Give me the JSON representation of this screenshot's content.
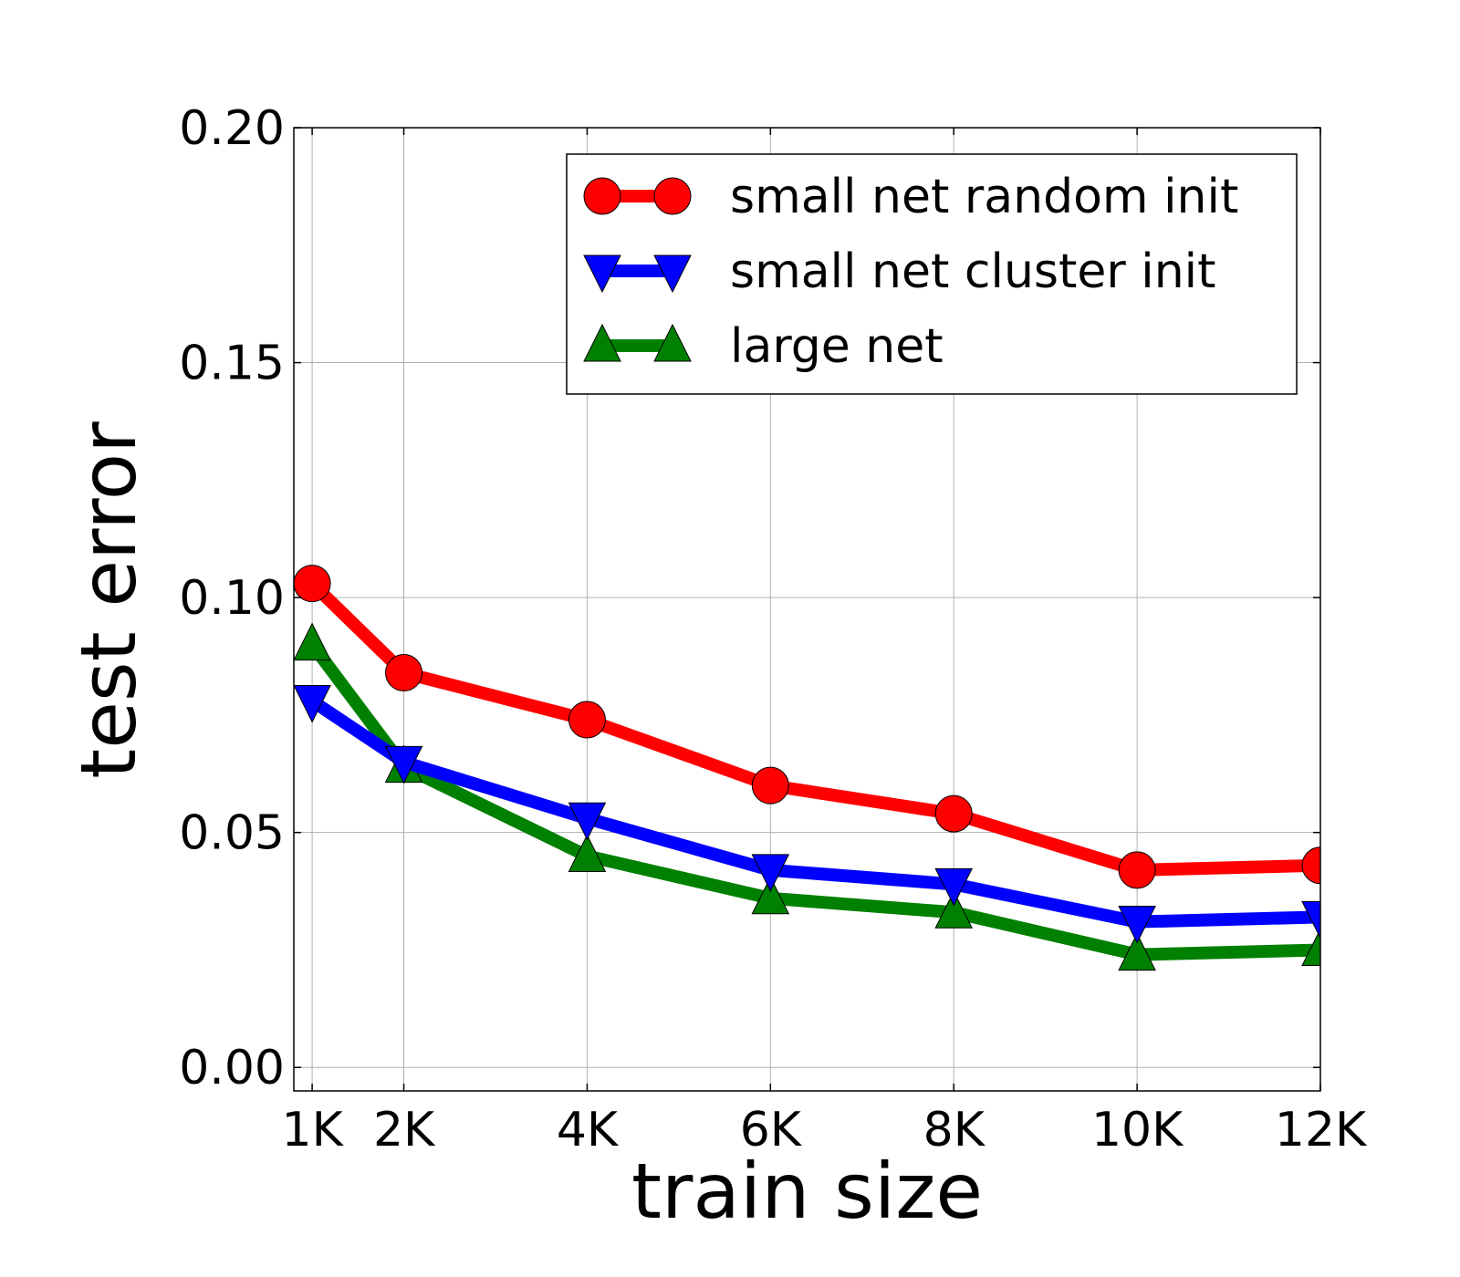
{
  "chart_data": {
    "type": "line",
    "xlabel": "train size",
    "ylabel": "test error",
    "x": [
      1000,
      2000,
      4000,
      6000,
      8000,
      10000,
      12000
    ],
    "xlim": [
      800,
      12000
    ],
    "ylim": [
      -0.005,
      0.2
    ],
    "xticks": [
      1000,
      2000,
      4000,
      6000,
      8000,
      10000,
      12000
    ],
    "xtick_labels": [
      "1K",
      "2K",
      "4K",
      "6K",
      "8K",
      "10K",
      "12K"
    ],
    "yticks": [
      0.0,
      0.05,
      0.1,
      0.15,
      0.2
    ],
    "ytick_labels": [
      "0.00",
      "0.05",
      "0.10",
      "0.15",
      "0.20"
    ],
    "grid": true,
    "legend_position": "top-right",
    "series": [
      {
        "name": "small net random init",
        "marker": "circle",
        "color": "#ff0000",
        "values": [
          0.103,
          0.084,
          0.074,
          0.06,
          0.054,
          0.042,
          0.043
        ]
      },
      {
        "name": "small net cluster init",
        "marker": "triangle-down",
        "color": "#0000ff",
        "values": [
          0.078,
          0.065,
          0.053,
          0.042,
          0.039,
          0.031,
          0.032
        ]
      },
      {
        "name": "large net",
        "marker": "triangle-up",
        "color": "#008000",
        "values": [
          0.09,
          0.064,
          0.045,
          0.036,
          0.033,
          0.024,
          0.025
        ]
      }
    ]
  }
}
